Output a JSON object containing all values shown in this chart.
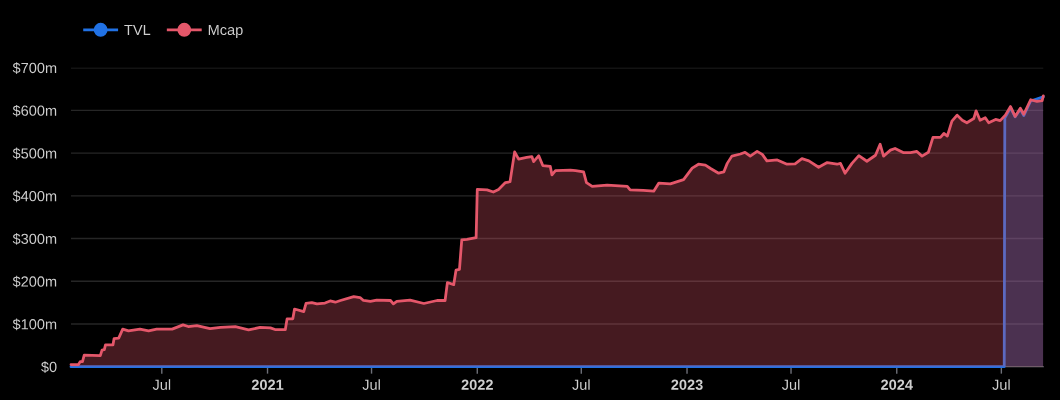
{
  "chart_data": {
    "type": "area",
    "xlim": [
      "2020-01-25",
      "2024-09-12"
    ],
    "ylim": [
      0,
      700
    ],
    "xticks": [
      {
        "value": "2020-07-01",
        "label": "Jul"
      },
      {
        "value": "2021-01-01",
        "label": "2021"
      },
      {
        "value": "2021-07-01",
        "label": "Jul"
      },
      {
        "value": "2022-01-01",
        "label": "2022"
      },
      {
        "value": "2022-07-01",
        "label": "Jul"
      },
      {
        "value": "2023-01-01",
        "label": "2023"
      },
      {
        "value": "2023-07-01",
        "label": "Jul"
      },
      {
        "value": "2024-01-01",
        "label": "2024"
      },
      {
        "value": "2024-07-01",
        "label": "Jul"
      }
    ],
    "yticks": [
      {
        "value": 0,
        "label": "$0"
      },
      {
        "value": 100,
        "label": "$100m"
      },
      {
        "value": 200,
        "label": "$200m"
      },
      {
        "value": 300,
        "label": "$300m"
      },
      {
        "value": 400,
        "label": "$400m"
      },
      {
        "value": 500,
        "label": "$500m"
      },
      {
        "value": 600,
        "label": "$600m"
      },
      {
        "value": 700,
        "label": "$700m"
      }
    ],
    "grid": "y",
    "legend": "top left",
    "series": [
      {
        "name": "TVL",
        "color": "#2172e5",
        "x": [
          "2020-01-25",
          "2024-07-06",
          "2024-07-07",
          "2024-07-17",
          "2024-07-25",
          "2024-08-03",
          "2024-08-09",
          "2024-08-21",
          "2024-09-12"
        ],
        "values": [
          0,
          0,
          582,
          606,
          585,
          603,
          588,
          622,
          632
        ]
      },
      {
        "name": "Mcap",
        "color": "#e4576a",
        "x": [
          "2020-01-25",
          "2020-02-07",
          "2020-02-10",
          "2020-02-14",
          "2020-02-17",
          "2020-03-16",
          "2020-03-19",
          "2020-03-23",
          "2020-03-25",
          "2020-04-07",
          "2020-04-09",
          "2020-04-17",
          "2020-04-24",
          "2020-05-04",
          "2020-05-24",
          "2020-06-08",
          "2020-06-22",
          "2020-07-19",
          "2020-08-07",
          "2020-08-16",
          "2020-08-31",
          "2020-09-23",
          "2020-10-11",
          "2020-11-06",
          "2020-11-29",
          "2020-12-19",
          "2021-01-06",
          "2021-01-14",
          "2021-02-01",
          "2021-02-04",
          "2021-02-14",
          "2021-02-17",
          "2021-03-05",
          "2021-03-09",
          "2021-03-19",
          "2021-03-28",
          "2021-04-11",
          "2021-04-20",
          "2021-04-29",
          "2021-05-08",
          "2021-05-31",
          "2021-06-11",
          "2021-06-17",
          "2021-06-29",
          "2021-07-10",
          "2021-08-03",
          "2021-08-08",
          "2021-08-14",
          "2021-09-06",
          "2021-09-30",
          "2021-10-23",
          "2021-11-06",
          "2021-11-10",
          "2021-11-21",
          "2021-11-25",
          "2021-12-01",
          "2021-12-05",
          "2021-12-14",
          "2021-12-30",
          "2022-01-01",
          "2022-01-18",
          "2022-01-29",
          "2022-02-07",
          "2022-02-19",
          "2022-02-27",
          "2022-03-07",
          "2022-03-14",
          "2022-03-28",
          "2022-04-06",
          "2022-04-09",
          "2022-04-18",
          "2022-04-25",
          "2022-05-08",
          "2022-05-11",
          "2022-05-17",
          "2022-06-12",
          "2022-06-21",
          "2022-07-05",
          "2022-07-10",
          "2022-07-20",
          "2022-08-15",
          "2022-09-19",
          "2022-09-24",
          "2022-10-17",
          "2022-11-04",
          "2022-11-13",
          "2022-12-03",
          "2022-12-26",
          "2023-01-10",
          "2023-01-21",
          "2023-02-02",
          "2023-02-11",
          "2023-02-25",
          "2023-03-06",
          "2023-03-12",
          "2023-03-20",
          "2023-04-04",
          "2023-04-12",
          "2023-04-21",
          "2023-05-03",
          "2023-05-12",
          "2023-05-20",
          "2023-06-07",
          "2023-06-24",
          "2023-07-08",
          "2023-07-20",
          "2023-08-01",
          "2023-08-18",
          "2023-09-02",
          "2023-09-19",
          "2023-09-25",
          "2023-10-03",
          "2023-10-15",
          "2023-10-27",
          "2023-11-10",
          "2023-11-25",
          "2023-12-03",
          "2023-12-09",
          "2023-12-21",
          "2023-12-29",
          "2024-01-13",
          "2024-01-25",
          "2024-02-05",
          "2024-02-14",
          "2024-02-25",
          "2024-03-04",
          "2024-03-17",
          "2024-03-23",
          "2024-03-29",
          "2024-04-06",
          "2024-04-15",
          "2024-04-24",
          "2024-05-02",
          "2024-05-14",
          "2024-05-18",
          "2024-05-25",
          "2024-06-03",
          "2024-06-09",
          "2024-06-21",
          "2024-06-29",
          "2024-07-08",
          "2024-07-17",
          "2024-07-25",
          "2024-08-03",
          "2024-08-09",
          "2024-08-21",
          "2024-09-01",
          "2024-09-10",
          "2024-09-12"
        ],
        "values": [
          5,
          5,
          12,
          12,
          27,
          26,
          39,
          40,
          51,
          51,
          66,
          67,
          88,
          84,
          88,
          84,
          88,
          88,
          98,
          94,
          96,
          89,
          92,
          94,
          86,
          92,
          91,
          87,
          87,
          112,
          112,
          135,
          129,
          148,
          150,
          147,
          149,
          154,
          151,
          155,
          164,
          162,
          155,
          153,
          156,
          155,
          147,
          153,
          156,
          148,
          155,
          155,
          197,
          192,
          226,
          228,
          297,
          298,
          302,
          415,
          414,
          409,
          415,
          431,
          433,
          503,
          486,
          490,
          492,
          480,
          494,
          471,
          469,
          449,
          459,
          460,
          459,
          456,
          431,
          422,
          425,
          422,
          414,
          413,
          411,
          430,
          428,
          438,
          465,
          474,
          472,
          464,
          453,
          456,
          476,
          493,
          498,
          502,
          493,
          504,
          497,
          482,
          484,
          474,
          475,
          487,
          482,
          467,
          478,
          474,
          476,
          453,
          476,
          494,
          481,
          495,
          521,
          493,
          507,
          511,
          501,
          501,
          504,
          493,
          502,
          537,
          537,
          546,
          540,
          575,
          589,
          577,
          571,
          581,
          599,
          577,
          583,
          571,
          579,
          576,
          589,
          609,
          586,
          605,
          591,
          625,
          621,
          623,
          634
        ]
      }
    ]
  }
}
